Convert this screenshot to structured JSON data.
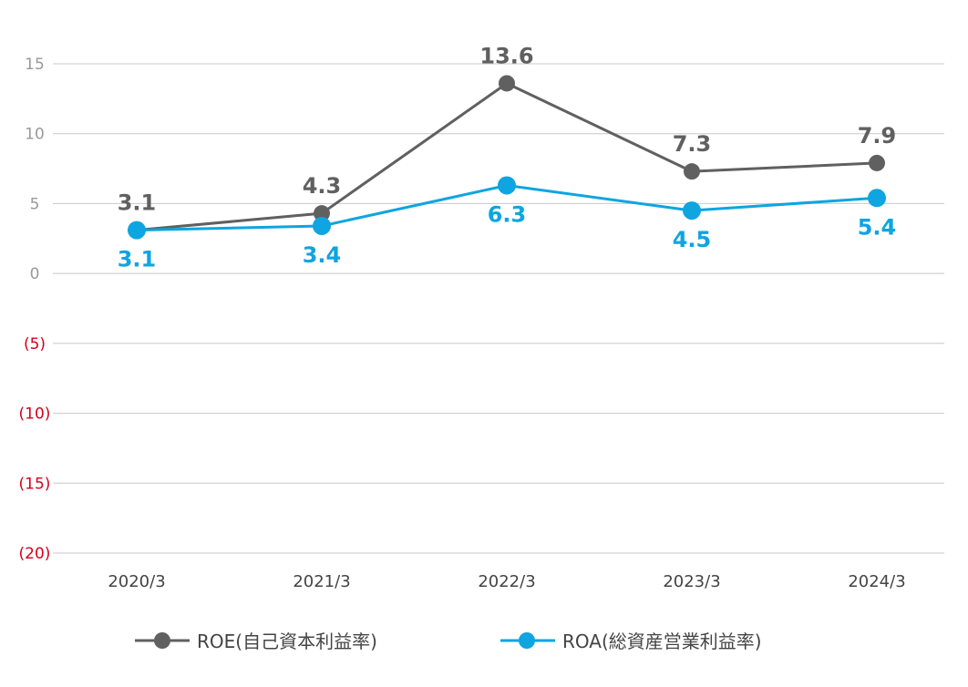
{
  "chart_data": {
    "type": "line",
    "categories": [
      "2020/3",
      "2021/3",
      "2022/3",
      "2023/3",
      "2024/3"
    ],
    "ylim": [
      -20,
      15
    ],
    "yticks": [
      {
        "value": 15,
        "label": "15"
      },
      {
        "value": 10,
        "label": "10"
      },
      {
        "value": 5,
        "label": "5"
      },
      {
        "value": 0,
        "label": "0"
      },
      {
        "value": -5,
        "label": "(5)"
      },
      {
        "value": -10,
        "label": "(10)"
      },
      {
        "value": -15,
        "label": "(15)"
      },
      {
        "value": -20,
        "label": "(20)"
      }
    ],
    "grid": true,
    "legend_position": "bottom",
    "series": [
      {
        "name": "ROE(自己資本利益率)",
        "values": [
          3.1,
          4.3,
          13.6,
          7.3,
          7.9
        ],
        "labels": [
          "3.1",
          "4.3",
          "13.6",
          "7.3",
          "7.9"
        ],
        "color": "#606060",
        "label_position": "above"
      },
      {
        "name": "ROA(総資産営業利益率)",
        "values": [
          3.1,
          3.4,
          6.3,
          4.5,
          5.4
        ],
        "labels": [
          "3.1",
          "3.4",
          "6.3",
          "4.5",
          "5.4"
        ],
        "color": "#0ea5e0",
        "label_position": "below"
      }
    ],
    "colors": {
      "positive_tick": "#999999",
      "negative_tick": "#d6001c",
      "grid": "#c8c8c8"
    }
  }
}
